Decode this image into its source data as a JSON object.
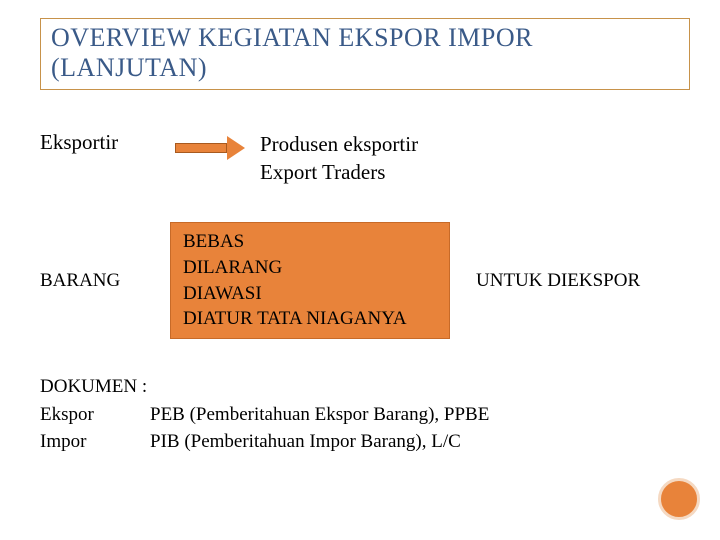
{
  "title_line1": "OVERVIEW KEGIATAN EKSPOR IMPOR",
  "title_line2": "(LANJUTAN)",
  "eksportir": {
    "label": "Eksportir",
    "right1": "Produsen eksportir",
    "right2": " Export Traders"
  },
  "barang": {
    "left": "BARANG",
    "box": {
      "l1": "BEBAS",
      "l2": "DILARANG",
      "l3": " DIAWASI",
      "l4": "DIATUR TATA NIAGANYA"
    },
    "right": "UNTUK DIEKSPOR"
  },
  "dokumen": {
    "header": "DOKUMEN :",
    "ekspor_label": "Ekspor",
    "ekspor_value": "PEB (Pemberitahuan Ekspor Barang), PPBE",
    "impor_label": "Impor",
    "impor_value": "PIB  (Pemberitahuan Impor Barang), L/C"
  },
  "colors": {
    "title_text": "#3a5a88",
    "title_border": "#c7924a",
    "accent": "#e8833a",
    "accent_border": "#c76a28",
    "body_text": "#000000",
    "background": "#ffffff"
  }
}
